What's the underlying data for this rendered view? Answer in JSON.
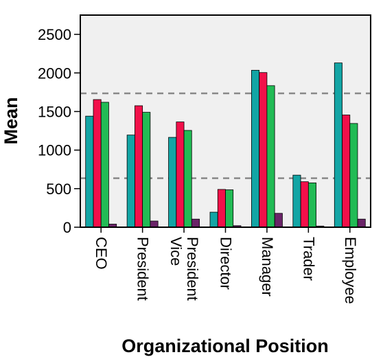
{
  "chart_data": {
    "type": "bar",
    "title": "",
    "xlabel": "Organizational Position",
    "ylabel": "Mean",
    "ylim": [
      0,
      2750
    ],
    "yticks": [
      0,
      500,
      1000,
      1500,
      2000,
      2500
    ],
    "categories": [
      "CEO",
      "President",
      "Vice President",
      "Director",
      "Manager",
      "Trader",
      "Employee"
    ],
    "category_lines": [
      [
        "CEO"
      ],
      [
        "President"
      ],
      [
        "Vice",
        "President"
      ],
      [
        "Director"
      ],
      [
        "Manager"
      ],
      [
        "Trader"
      ],
      [
        "Employee"
      ]
    ],
    "series": [
      {
        "color": "#13a5a5",
        "values": [
          1440,
          1195,
          1165,
          195,
          2035,
          675,
          2130
        ]
      },
      {
        "color": "#f2104a",
        "values": [
          1655,
          1575,
          1365,
          490,
          2005,
          590,
          1455
        ]
      },
      {
        "color": "#22bb55",
        "values": [
          1620,
          1490,
          1255,
          485,
          1835,
          575,
          1345
        ]
      },
      {
        "color": "#6a2468",
        "values": [
          40,
          80,
          105,
          20,
          180,
          15,
          105
        ]
      }
    ],
    "reference_lines": [
      1735,
      635
    ],
    "grid": false,
    "legend": "none",
    "plot_background": "#f0f0f0"
  }
}
